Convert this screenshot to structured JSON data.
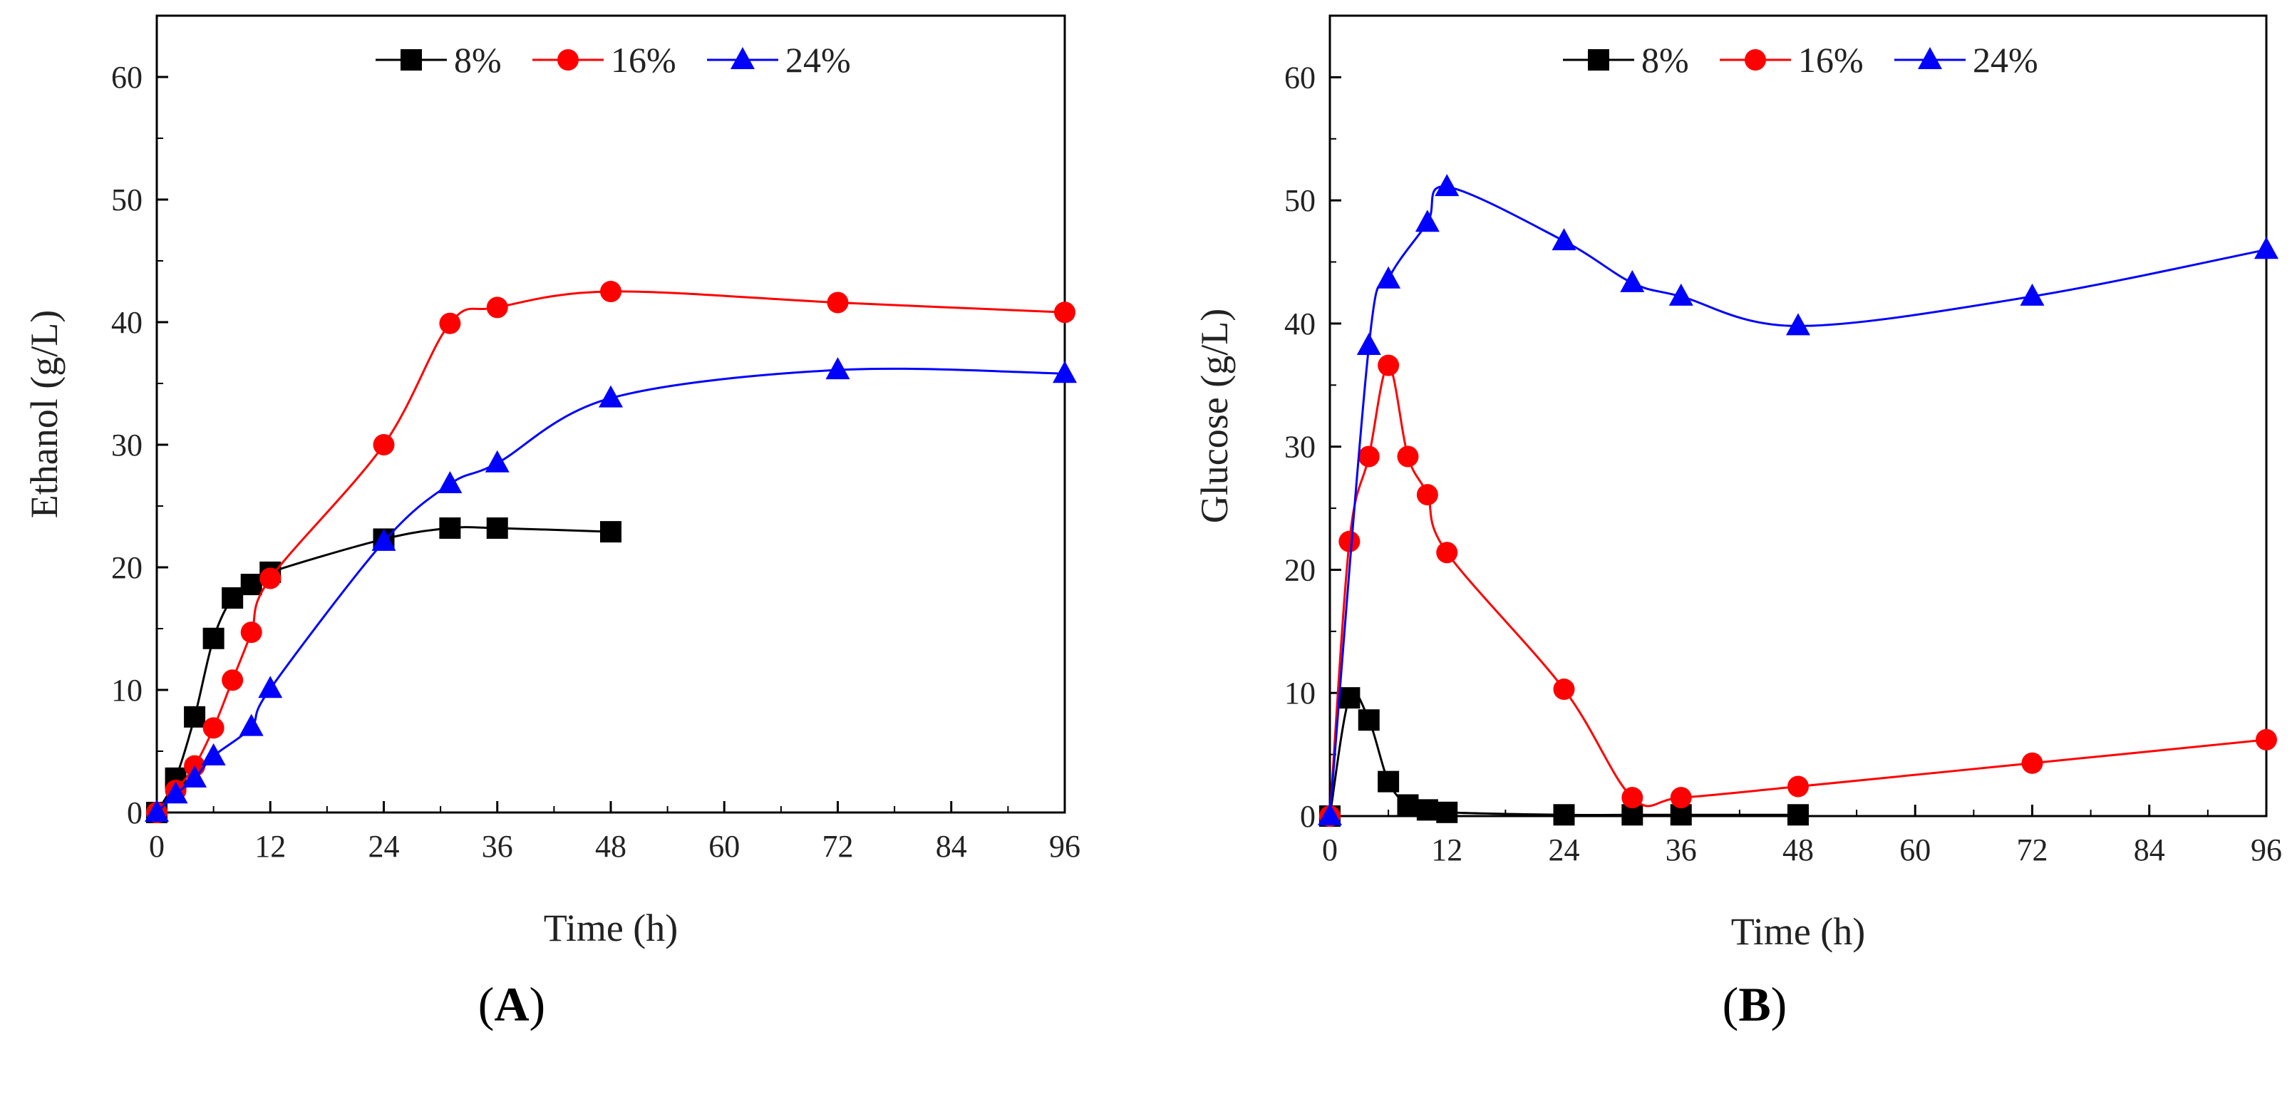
{
  "chart_data": [
    {
      "type": "line",
      "panel_label": "A",
      "xlabel": "Time (h)",
      "ylabel": "Ethanol (g/L)",
      "xlim": [
        0,
        96
      ],
      "ylim": [
        0,
        65
      ],
      "xticks": [
        0,
        12,
        24,
        36,
        48,
        60,
        72,
        84,
        96
      ],
      "yticks": [
        0,
        10,
        20,
        30,
        40,
        50,
        60
      ],
      "legend_position": "top-center",
      "series": [
        {
          "name": "8%",
          "color": "#000000",
          "marker": "square",
          "x": [
            0,
            2,
            4,
            6,
            8,
            10,
            12,
            24,
            31,
            36,
            48
          ],
          "y": [
            0,
            2.8,
            7.8,
            14.2,
            17.5,
            18.6,
            19.6,
            22.3,
            23.2,
            23.2,
            22.9
          ]
        },
        {
          "name": "16%",
          "color": "#ff0000",
          "marker": "circle",
          "x": [
            0,
            2,
            4,
            6,
            8,
            10,
            12,
            24,
            31,
            36,
            48,
            72,
            96
          ],
          "y": [
            0,
            1.8,
            3.8,
            6.9,
            10.8,
            14.7,
            19.1,
            30.0,
            39.9,
            41.2,
            42.5,
            41.6,
            40.8
          ]
        },
        {
          "name": "24%",
          "color": "#0000ff",
          "marker": "triangle",
          "x": [
            0,
            2,
            4,
            6,
            10,
            12,
            24,
            31,
            36,
            48,
            72,
            96
          ],
          "y": [
            0,
            1.5,
            2.8,
            4.6,
            7.0,
            10.1,
            22.1,
            26.8,
            28.5,
            33.8,
            36.1,
            35.8
          ]
        }
      ]
    },
    {
      "type": "line",
      "panel_label": "B",
      "xlabel": "Time (h)",
      "ylabel": "Glucose (g/L)",
      "xlim": [
        0,
        96
      ],
      "ylim": [
        0,
        65
      ],
      "xticks": [
        0,
        12,
        24,
        36,
        48,
        60,
        72,
        84,
        96
      ],
      "yticks": [
        0,
        10,
        20,
        30,
        40,
        50,
        60
      ],
      "legend_position": "top-center",
      "series": [
        {
          "name": "8%",
          "color": "#000000",
          "marker": "square",
          "x": [
            0,
            2,
            4,
            6,
            8,
            10,
            12,
            24,
            31,
            36,
            48
          ],
          "y": [
            0,
            9.6,
            7.8,
            2.8,
            0.9,
            0.5,
            0.3,
            0.1,
            0.1,
            0.1,
            0.1
          ]
        },
        {
          "name": "16%",
          "color": "#ff0000",
          "marker": "circle",
          "x": [
            0,
            2,
            4,
            6,
            8,
            10,
            12,
            24,
            31,
            36,
            48,
            72,
            96
          ],
          "y": [
            0,
            22.3,
            29.2,
            36.6,
            29.2,
            26.1,
            21.4,
            10.3,
            1.5,
            1.5,
            2.4,
            4.3,
            6.2
          ]
        },
        {
          "name": "24%",
          "color": "#0000ff",
          "marker": "triangle",
          "x": [
            0,
            4,
            6,
            10,
            12,
            24,
            31,
            36,
            48,
            72,
            96
          ],
          "y": [
            0,
            38.2,
            43.6,
            48.2,
            51.1,
            46.7,
            43.3,
            42.2,
            39.8,
            42.2,
            46.0
          ]
        }
      ]
    }
  ]
}
